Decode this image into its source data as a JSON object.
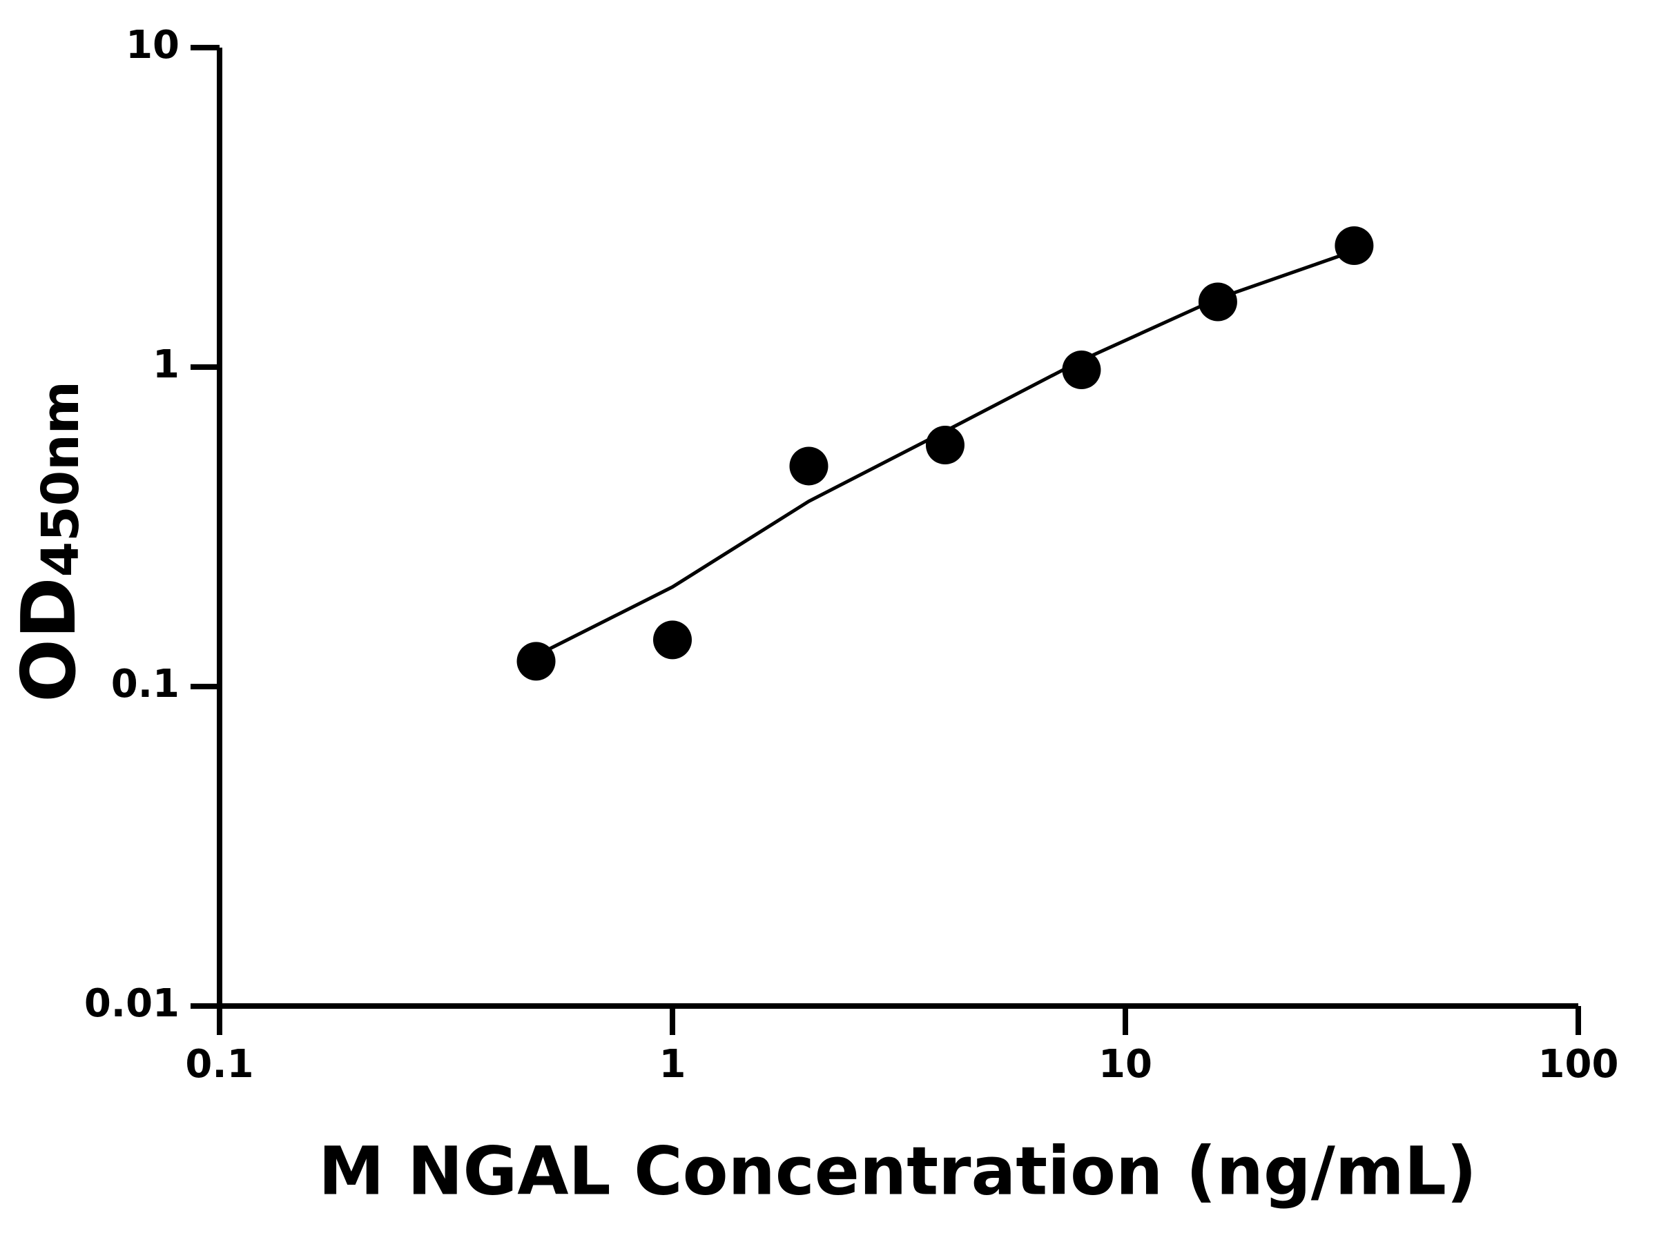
{
  "chart_data": {
    "type": "scatter",
    "xlabel": "M NGAL Concentration (ng/mL)",
    "ylabel": "OD",
    "ylabel_subscript": "450nm",
    "x": [
      0.5,
      1,
      2,
      4,
      8,
      16,
      32
    ],
    "values": [
      0.12,
      0.14,
      0.49,
      0.57,
      0.98,
      1.6,
      2.4
    ],
    "color": "#000000",
    "fit": {
      "x": [
        0.5,
        1,
        2,
        4,
        8,
        16,
        32
      ],
      "values": [
        0.125,
        0.205,
        0.38,
        0.63,
        1.05,
        1.64,
        2.31
      ]
    },
    "xscale": "log",
    "yscale": "log",
    "xlim": [
      0.1,
      100
    ],
    "ylim": [
      0.01,
      10
    ],
    "xticks": [
      0.1,
      1,
      10,
      100
    ],
    "yticks": [
      0.01,
      0.1,
      1,
      10
    ]
  }
}
